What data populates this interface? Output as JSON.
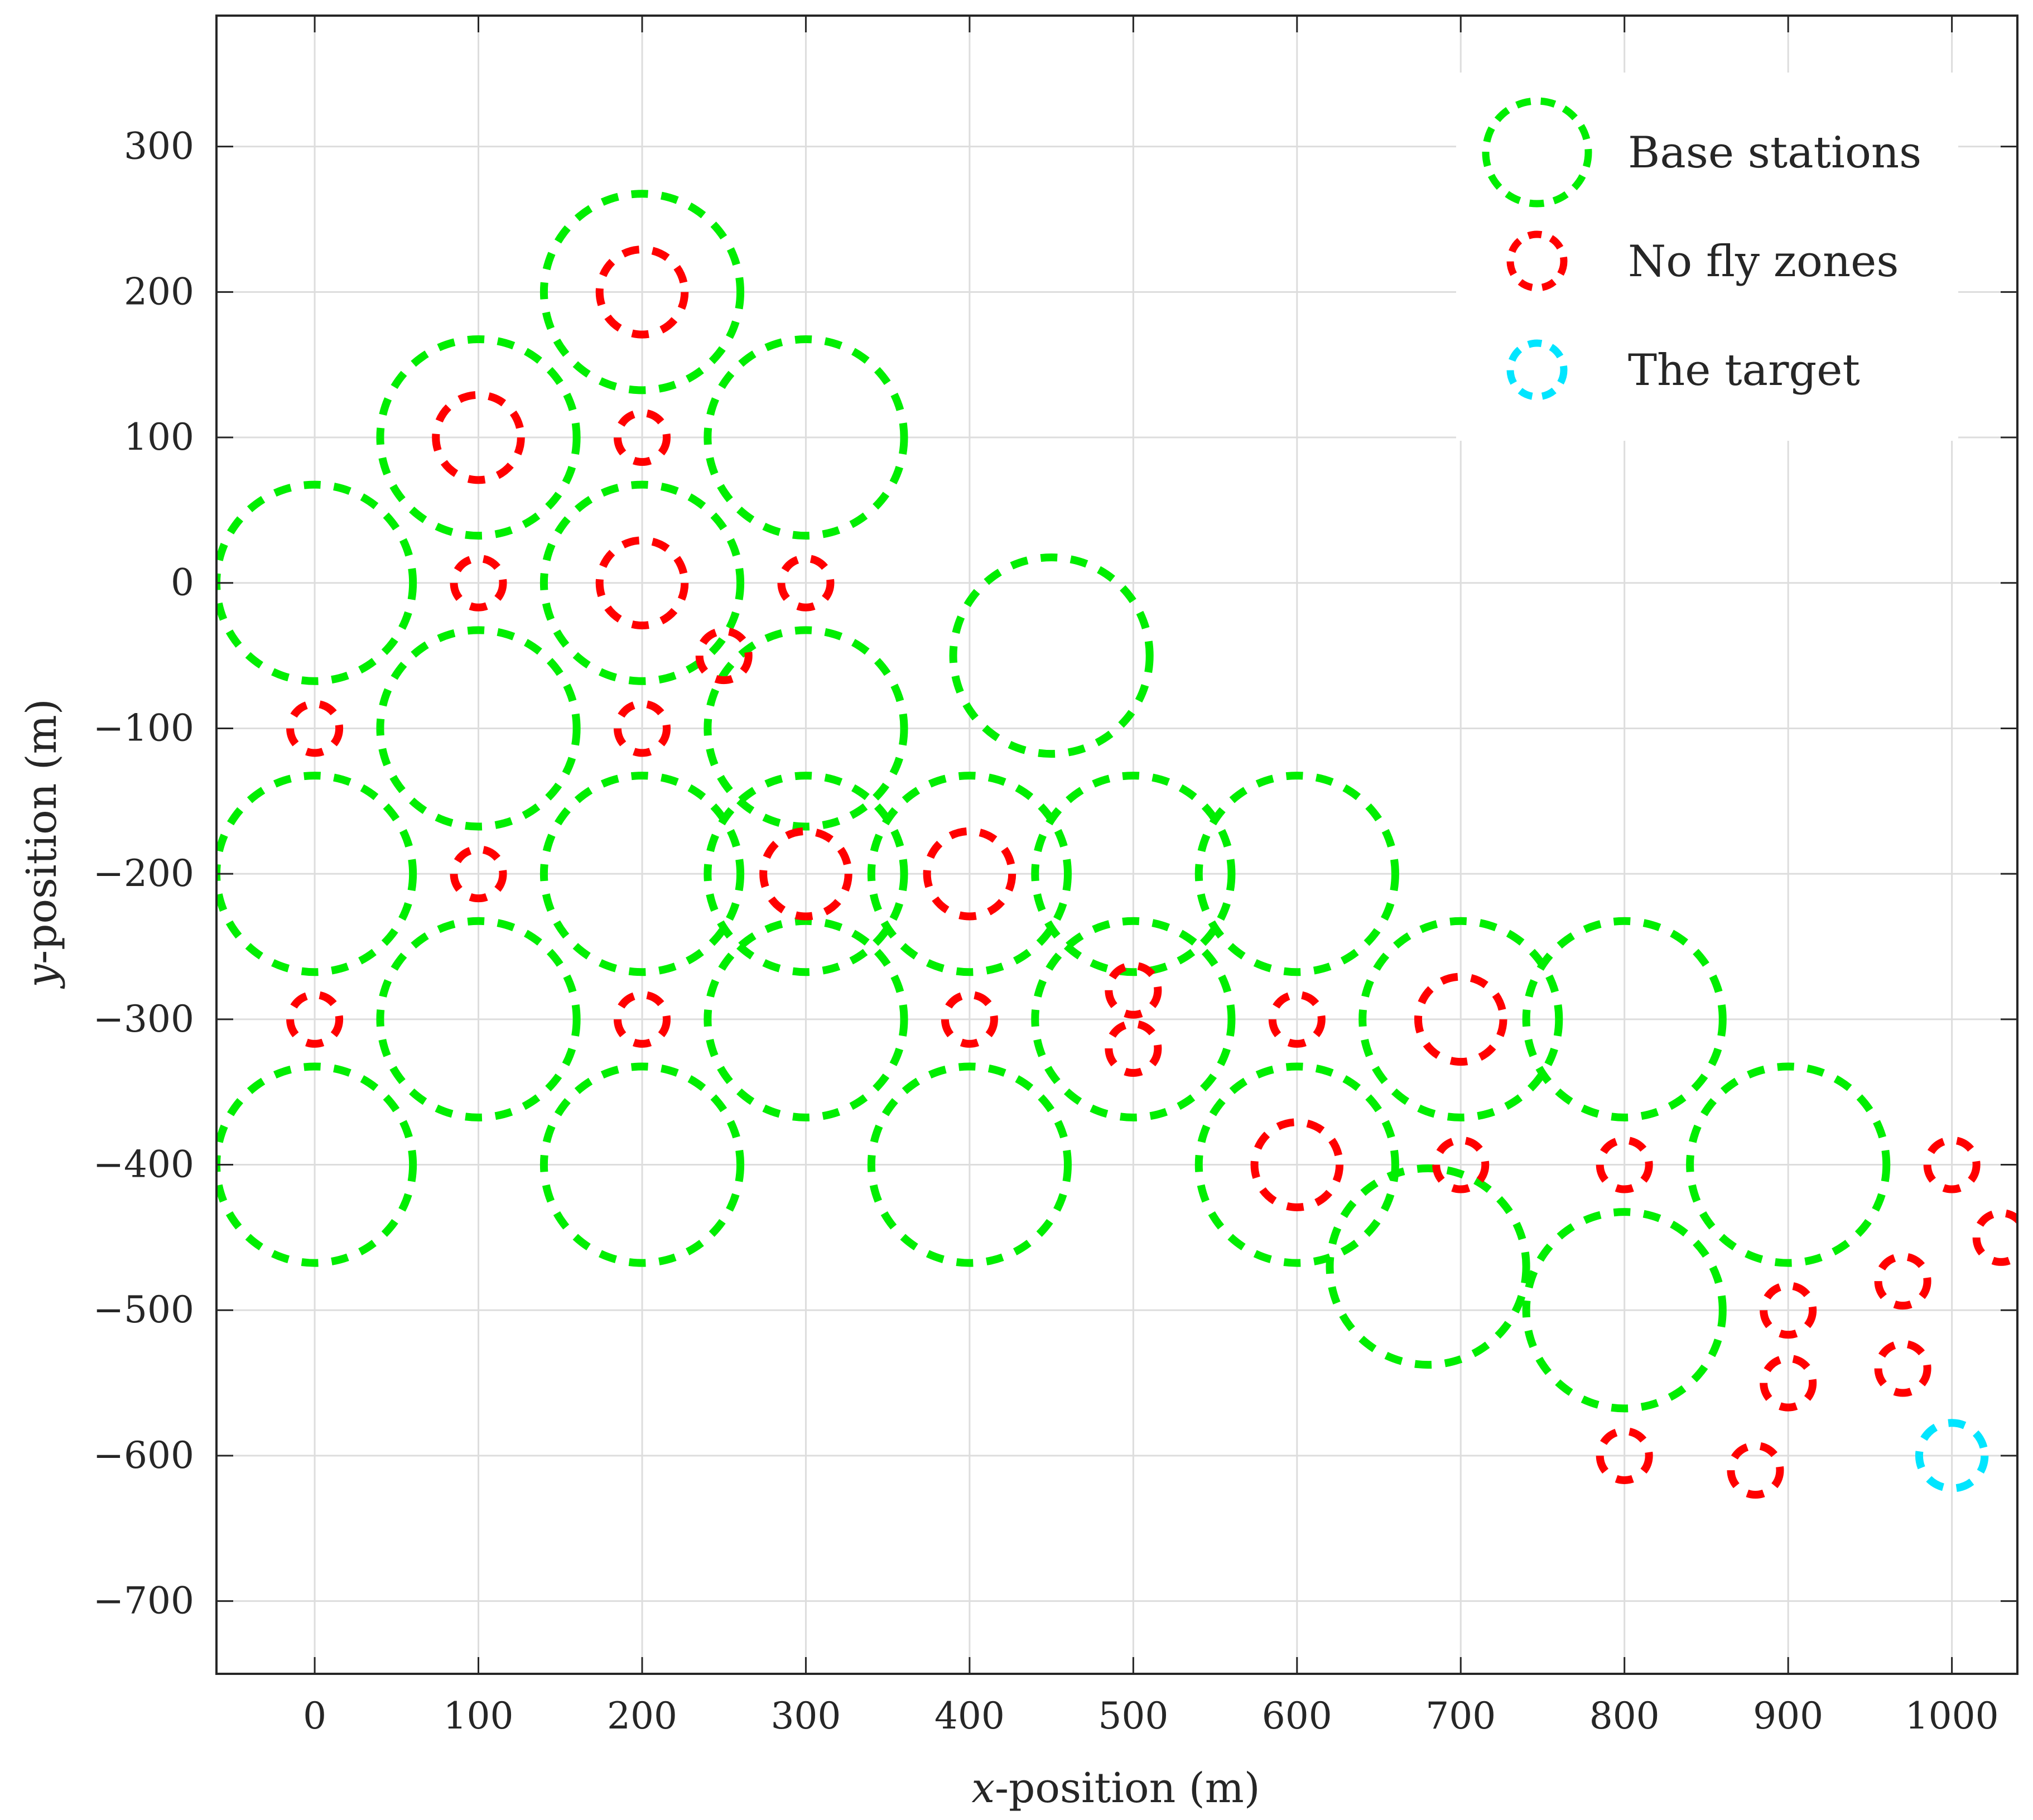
{
  "chart_data": {
    "type": "scatter",
    "title": "",
    "xlabel": {
      "italic": "x",
      "rest": "-position (m)"
    },
    "ylabel": {
      "italic": "y",
      "rest": "-position (m)"
    },
    "xlim": [
      -60,
      1040
    ],
    "ylim": [
      -750,
      390
    ],
    "xticks": [
      "0",
      "100",
      "200",
      "300",
      "400",
      "500",
      "600",
      "700",
      "800",
      "900",
      "1000"
    ],
    "yticks": [
      "300",
      "200",
      "100",
      "0",
      "−100",
      "−200",
      "−300",
      "−400",
      "−500",
      "−600",
      "−700"
    ],
    "xtick_values": [
      0,
      100,
      200,
      300,
      400,
      500,
      600,
      700,
      800,
      900,
      1000
    ],
    "ytick_values": [
      300,
      200,
      100,
      0,
      -100,
      -200,
      -300,
      -400,
      -500,
      -600,
      -700
    ],
    "grid": true,
    "legend_position": "top-right",
    "series": [
      {
        "name": "Base stations",
        "color": "#00ee00",
        "style": "dashed-circle",
        "radius": 60,
        "points": [
          [
            200,
            200
          ],
          [
            100,
            100
          ],
          [
            300,
            100
          ],
          [
            0,
            0
          ],
          [
            200,
            0
          ],
          [
            450,
            -50
          ],
          [
            100,
            -100
          ],
          [
            300,
            -100
          ],
          [
            0,
            -200
          ],
          [
            200,
            -200
          ],
          [
            300,
            -200
          ],
          [
            400,
            -200
          ],
          [
            500,
            -200
          ],
          [
            600,
            -200
          ],
          [
            100,
            -300
          ],
          [
            300,
            -300
          ],
          [
            500,
            -300
          ],
          [
            700,
            -300
          ],
          [
            800,
            -300
          ],
          [
            0,
            -400
          ],
          [
            200,
            -400
          ],
          [
            400,
            -400
          ],
          [
            600,
            -400
          ],
          [
            900,
            -400
          ],
          [
            680,
            -470
          ],
          [
            800,
            -500
          ]
        ]
      },
      {
        "name": "No fly zones",
        "color": "#ff0000",
        "style": "dashed-circle",
        "points": [
          [
            200,
            200,
            26
          ],
          [
            100,
            100,
            26
          ],
          [
            200,
            100,
            15
          ],
          [
            100,
            0,
            15
          ],
          [
            200,
            0,
            26
          ],
          [
            300,
            0,
            15
          ],
          [
            250,
            -50,
            15
          ],
          [
            0,
            -100,
            15
          ],
          [
            200,
            -100,
            15
          ],
          [
            100,
            -200,
            15
          ],
          [
            300,
            -200,
            26
          ],
          [
            400,
            -200,
            26
          ],
          [
            0,
            -300,
            15
          ],
          [
            200,
            -300,
            15
          ],
          [
            400,
            -300,
            15
          ],
          [
            500,
            -280,
            15
          ],
          [
            500,
            -320,
            15
          ],
          [
            600,
            -300,
            15
          ],
          [
            700,
            -300,
            26
          ],
          [
            600,
            -400,
            26
          ],
          [
            700,
            -400,
            15
          ],
          [
            800,
            -400,
            15
          ],
          [
            1000,
            -400,
            15
          ],
          [
            1030,
            -450,
            15
          ],
          [
            970,
            -480,
            15
          ],
          [
            900,
            -500,
            15
          ],
          [
            900,
            -550,
            15
          ],
          [
            970,
            -540,
            15
          ],
          [
            800,
            -600,
            15
          ],
          [
            880,
            -610,
            15
          ]
        ]
      },
      {
        "name": "The target",
        "color": "#00e5ff",
        "style": "dashed-circle",
        "radius": 20,
        "points": [
          [
            1000,
            -600
          ]
        ]
      }
    ]
  }
}
